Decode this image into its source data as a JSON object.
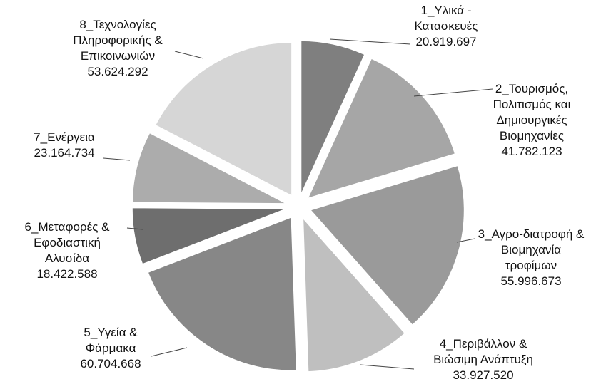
{
  "chart_data": {
    "type": "pie",
    "categories": [
      "1_Υλικά - Κατασκευές",
      "2_Τουρισμός, Πολιτισμός και Δημιουργικές Βιομηχανίες",
      "3_Αγρο-διατροφή & Βιομηχανία τροφίμων",
      "4_Περιβάλλον & Βιώσιμη Ανάπτυξη",
      "5_Υγεία & Φάρμακα",
      "6_Μεταφορές & Εφοδιαστική Αλυσίδα",
      "7_Ενέργεια",
      "8_Τεχνολογίες Πληροφορικής & Επικοινωνιών"
    ],
    "values": [
      20919697,
      41782123,
      55996673,
      33927520,
      60704668,
      18422588,
      23164734,
      53624292
    ],
    "value_labels": [
      "20.919.697",
      "41.782.123",
      "55.996.673",
      "33.927.520",
      "60.704.668",
      "18.422.588",
      "23.164.734",
      "53.624.292"
    ],
    "colors": [
      "#7f7f7f",
      "#a6a6a6",
      "#9a9a9a",
      "#bfbfbf",
      "#878787",
      "#6e6e6e",
      "#acacac",
      "#d6d6d6"
    ]
  }
}
